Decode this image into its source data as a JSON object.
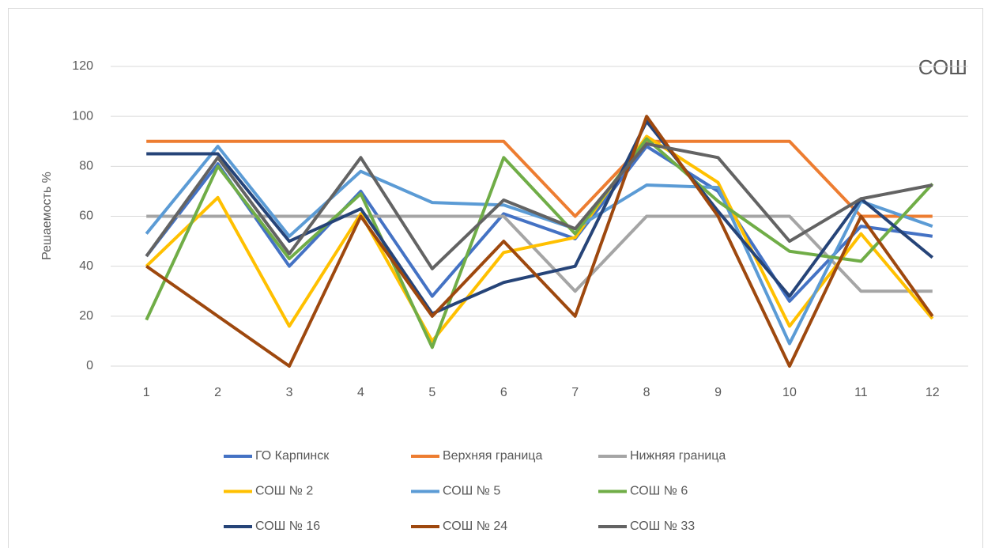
{
  "chart_data": {
    "type": "line",
    "title": "СОШ",
    "y_label": "Решаемость %",
    "categories": [
      "1",
      "2",
      "3",
      "4",
      "5",
      "6",
      "7",
      "8",
      "9",
      "10",
      "11",
      "12"
    ],
    "ylim": [
      0,
      120
    ],
    "yticks": [
      0,
      20,
      40,
      60,
      80,
      100,
      120
    ],
    "grid": true,
    "series": [
      {
        "name": "ГО Карпинск",
        "color": "#4472c4",
        "values": [
          44,
          81,
          40,
          70,
          28,
          61,
          51,
          88,
          70,
          26,
          56,
          52
        ]
      },
      {
        "name": "Верхняя граница",
        "color": "#ed7d31",
        "values": [
          90,
          90,
          90,
          90,
          90,
          90,
          60,
          90,
          90,
          90,
          60,
          60
        ]
      },
      {
        "name": "Нижняя граница",
        "color": "#a5a5a5",
        "values": [
          60,
          60,
          60,
          60,
          60,
          60,
          30,
          60,
          60,
          60,
          30,
          30
        ]
      },
      {
        "name": "СОШ № 2",
        "color": "#ffc000",
        "values": [
          40,
          67.5,
          16,
          61,
          10,
          45.5,
          51.5,
          92,
          73.5,
          16,
          53,
          19
        ]
      },
      {
        "name": "СОШ № 5",
        "color": "#5b9bd5",
        "values": [
          53,
          88,
          52,
          78,
          65.5,
          64.5,
          55,
          72.5,
          71.5,
          9,
          66,
          56
        ]
      },
      {
        "name": "СОШ № 6",
        "color": "#70ad47",
        "values": [
          18.5,
          80,
          43,
          69,
          7.5,
          83.5,
          53,
          91,
          66,
          46,
          42,
          73
        ]
      },
      {
        "name": "СОШ № 16",
        "color": "#264478",
        "values": [
          85,
          85,
          50,
          63,
          21,
          33.5,
          40,
          98,
          62,
          28,
          67,
          43.5
        ]
      },
      {
        "name": "СОШ № 24",
        "color": "#9e480e",
        "values": [
          40,
          20,
          0,
          60,
          20,
          50,
          20,
          100,
          60,
          0,
          60,
          20
        ]
      },
      {
        "name": "СОШ № 33",
        "color": "#636363",
        "values": [
          44,
          83.5,
          45,
          83.5,
          39,
          66.5,
          55,
          89,
          83.5,
          50,
          67,
          72.5
        ]
      }
    ]
  }
}
